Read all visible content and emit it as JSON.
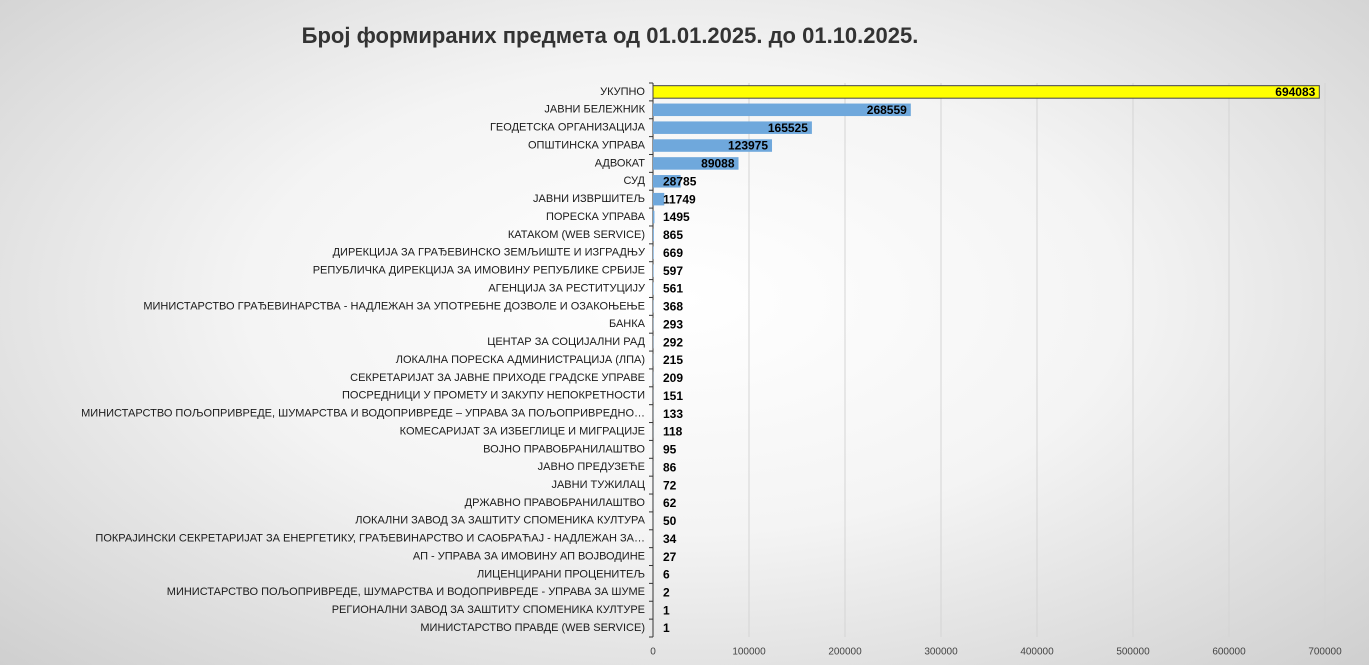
{
  "chart_data": {
    "type": "barh",
    "title": "Број формираних предмета од 01.01.2025. до 01.10.2025.",
    "categories": [
      "УКУПНО",
      "ЈАВНИ БЕЛЕЖНИК",
      "ГЕОДЕТСКА ОРГАНИЗАЦИЈА",
      "ОПШТИНСКА УПРАВА",
      "АДВОКАТ",
      "СУД",
      "ЈАВНИ ИЗВРШИТЕЉ",
      "ПОРЕСКА УПРАВА",
      "КАТАКОМ (WEB SERVICE)",
      "ДИРЕКЦИЈА ЗА ГРАЂЕВИНСКО ЗЕМЉИШТЕ И ИЗГРАДЊУ",
      "РЕПУБЛИЧКА ДИРЕКЦИЈА ЗА ИМОВИНУ РЕПУБЛИКЕ СРБИЈЕ",
      "АГЕНЦИЈА ЗА РЕСТИТУЦИЈУ",
      "МИНИСТАРСТВО ГРАЂЕВИНАРСТВА - НАДЛЕЖАН ЗА УПОТРЕБНЕ ДОЗВОЛЕ И ОЗАКОЊЕЊЕ",
      "БАНКА",
      "ЦЕНТАР ЗА СОЦИЈАЛНИ РАД",
      "ЛОКАЛНА ПОРЕСКА АДМИНИСТРАЦИЈА (ЛПА)",
      "СЕКРЕТАРИЈАТ ЗА ЈАВНЕ ПРИХОДЕ ГРАДСКЕ УПРАВЕ",
      "ПОСРЕДНИЦИ У ПРОМЕТУ И ЗАКУПУ НЕПОКРЕТНОСТИ",
      "МИНИСТАРСТВО ПОЉОПРИВРЕДЕ, ШУМАРСТВА И ВОДОПРИВРЕДЕ – УПРАВА ЗА ПОЉОПРИВРЕДНО…",
      "КОМЕСАРИЈАТ ЗА ИЗБЕГЛИЦЕ И МИГРАЦИЈЕ",
      "ВОЈНО ПРАВОБРАНИЛАШТВО",
      "ЈАВНО ПРЕДУЗЕЋЕ",
      "ЈАВНИ ТУЖИЛАЦ",
      "ДРЖАВНО ПРАВОБРАНИЛАШТВО",
      "ЛОКАЛНИ ЗАВОД ЗА ЗАШТИТУ СПОМЕНИКА КУЛТУРА",
      "ПОКРАЈИНСКИ СЕКРЕТАРИЈАТ ЗА ЕНЕРГЕТИКУ, ГРАЂЕВИНАРСТВО И САОБРАЋАЈ - НАДЛЕЖАН ЗА…",
      "АП - УПРАВА ЗА ИМОВИНУ АП ВОЈВОДИНЕ",
      "ЛИЦЕНЦИРАНИ ПРОЦЕНИТЕЉ",
      "МИНИСТАРСТВО ПОЉОПРИВРЕДЕ, ШУМАРСТВА И ВОДОПРИВРЕДЕ - УПРАВА ЗА ШУМЕ",
      "РЕГИОНАЛНИ ЗАВОД ЗА ЗАШТИТУ СПОМЕНИКА КУЛТУРЕ",
      "МИНИСТАРСТВО ПРАВДЕ (WEB SERVICE)"
    ],
    "values": [
      694083,
      268559,
      165525,
      123975,
      89088,
      28785,
      11749,
      1495,
      865,
      669,
      597,
      561,
      368,
      293,
      292,
      215,
      209,
      151,
      133,
      118,
      95,
      86,
      72,
      62,
      50,
      34,
      27,
      6,
      2,
      1,
      1
    ],
    "colors": [
      "#ffff00",
      "#6fa8dc",
      "#6fa8dc",
      "#6fa8dc",
      "#6fa8dc",
      "#6fa8dc",
      "#6fa8dc",
      "#6fa8dc",
      "#6fa8dc",
      "#6fa8dc",
      "#6fa8dc",
      "#6fa8dc",
      "#6fa8dc",
      "#6fa8dc",
      "#6fa8dc",
      "#6fa8dc",
      "#6fa8dc",
      "#6fa8dc",
      "#6fa8dc",
      "#6fa8dc",
      "#6fa8dc",
      "#6fa8dc",
      "#6fa8dc",
      "#6fa8dc",
      "#6fa8dc",
      "#6fa8dc",
      "#6fa8dc",
      "#6fa8dc",
      "#6fa8dc",
      "#6fa8dc",
      "#6fa8dc"
    ],
    "xlim": [
      0,
      700000
    ],
    "xticks": [
      0,
      100000,
      200000,
      300000,
      400000,
      500000,
      600000,
      700000
    ],
    "grid": true
  }
}
